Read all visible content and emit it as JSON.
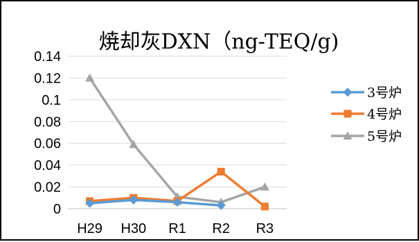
{
  "chart_data": {
    "type": "line",
    "title": "焼却灰DXN（ng-TEQ/g)",
    "xlabel": "",
    "ylabel": "",
    "categories": [
      "H29",
      "H30",
      "R1",
      "R2",
      "R3"
    ],
    "ylim": [
      0,
      0.14
    ],
    "yticks": [
      "0.14",
      "0.12",
      "0.1",
      "0.08",
      "0.06",
      "0.04",
      "0.02",
      "0"
    ],
    "grid": true,
    "legend_position": "right",
    "series": [
      {
        "name": "3号炉",
        "color": "#5B9BD5",
        "marker": "diamond",
        "values": [
          0.005,
          0.008,
          0.006,
          0.003,
          null
        ]
      },
      {
        "name": "4号炉",
        "color": "#ED7D31",
        "marker": "square",
        "values": [
          0.007,
          0.01,
          0.007,
          0.034,
          0.002
        ]
      },
      {
        "name": "5号炉",
        "color": "#A5A5A5",
        "marker": "triangle",
        "values": [
          0.12,
          0.059,
          0.011,
          0.006,
          0.02
        ]
      }
    ]
  }
}
